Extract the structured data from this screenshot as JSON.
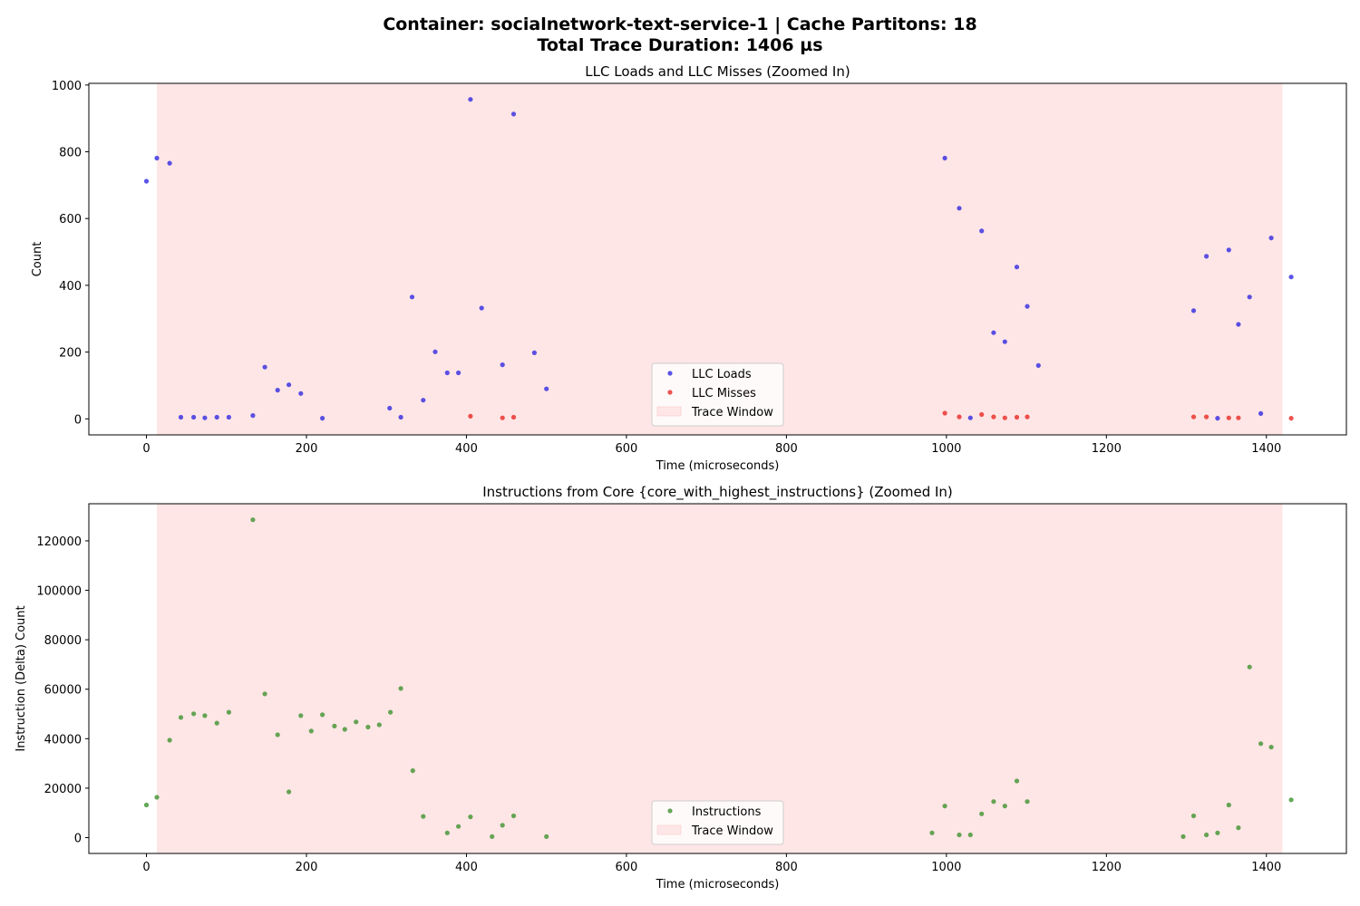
{
  "figure": {
    "title_line1": "Container: socialnetwork-text-service-1 | Cache Partitons: 18",
    "title_line2": "Total Trace Duration: 1406 µs"
  },
  "colors": {
    "loads": "#2b24e0",
    "misses": "#e8221e",
    "instructions": "#3a8f2a",
    "trace_window": "#ffe6e6"
  },
  "chart_data": [
    {
      "type": "scatter",
      "title": "LLC Loads and LLC Misses (Zoomed In)",
      "xlabel": "Time (microseconds)",
      "ylabel": "Count",
      "xlim": [
        -72,
        1500
      ],
      "ylim": [
        -48,
        1005
      ],
      "xticks": [
        0,
        200,
        400,
        600,
        800,
        1000,
        1200,
        1400
      ],
      "yticks": [
        0,
        200,
        400,
        600,
        800,
        1000
      ],
      "trace_window": [
        13,
        1420
      ],
      "legend_position": "lower center",
      "legend": [
        "LLC Loads",
        "LLC Misses",
        "Trace Window"
      ],
      "series": [
        {
          "name": "LLC Loads",
          "color_key": "loads",
          "points": [
            [
              0,
              712
            ],
            [
              13,
              781
            ],
            [
              29,
              766
            ],
            [
              43,
              5
            ],
            [
              59,
              5
            ],
            [
              73,
              3
            ],
            [
              88,
              5
            ],
            [
              103,
              5
            ],
            [
              133,
              10
            ],
            [
              148,
              155
            ],
            [
              164,
              86
            ],
            [
              178,
              102
            ],
            [
              193,
              76
            ],
            [
              220,
              2
            ],
            [
              304,
              32
            ],
            [
              318,
              5
            ],
            [
              332,
              365
            ],
            [
              346,
              56
            ],
            [
              361,
              201
            ],
            [
              376,
              138
            ],
            [
              390,
              138
            ],
            [
              405,
              957
            ],
            [
              419,
              332
            ],
            [
              445,
              162
            ],
            [
              459,
              913
            ],
            [
              485,
              198
            ],
            [
              500,
              90
            ],
            [
              998,
              781
            ],
            [
              1016,
              631
            ],
            [
              1030,
              3
            ],
            [
              1044,
              563
            ],
            [
              1059,
              258
            ],
            [
              1073,
              231
            ],
            [
              1088,
              455
            ],
            [
              1101,
              337
            ],
            [
              1115,
              160
            ],
            [
              1309,
              324
            ],
            [
              1325,
              487
            ],
            [
              1339,
              2
            ],
            [
              1353,
              506
            ],
            [
              1365,
              283
            ],
            [
              1379,
              365
            ],
            [
              1393,
              16
            ],
            [
              1406,
              542
            ],
            [
              1431,
              425
            ]
          ]
        },
        {
          "name": "LLC Misses",
          "color_key": "misses",
          "points": [
            [
              405,
              8
            ],
            [
              445,
              3
            ],
            [
              459,
              5
            ],
            [
              998,
              17
            ],
            [
              1016,
              6
            ],
            [
              1044,
              13
            ],
            [
              1059,
              6
            ],
            [
              1073,
              3
            ],
            [
              1088,
              5
            ],
            [
              1101,
              6
            ],
            [
              1309,
              6
            ],
            [
              1325,
              6
            ],
            [
              1353,
              3
            ],
            [
              1365,
              3
            ],
            [
              1431,
              2
            ]
          ]
        }
      ]
    },
    {
      "type": "scatter",
      "title": "Instructions from Core {core_with_highest_instructions} (Zoomed In)",
      "xlabel": "Time (microseconds)",
      "ylabel": "Instruction (Delta) Count",
      "xlim": [
        -72,
        1500
      ],
      "ylim": [
        -6400,
        135000
      ],
      "xticks": [
        0,
        200,
        400,
        600,
        800,
        1000,
        1200,
        1400
      ],
      "yticks": [
        0,
        20000,
        40000,
        60000,
        80000,
        100000,
        120000
      ],
      "trace_window": [
        13,
        1420
      ],
      "legend_position": "lower center",
      "legend": [
        "Instructions",
        "Trace Window"
      ],
      "series": [
        {
          "name": "Instructions",
          "color_key": "instructions",
          "points": [
            [
              0,
              13200
            ],
            [
              13,
              16300
            ],
            [
              29,
              39400
            ],
            [
              43,
              48600
            ],
            [
              59,
              50100
            ],
            [
              73,
              49300
            ],
            [
              88,
              46300
            ],
            [
              103,
              50700
            ],
            [
              133,
              128500
            ],
            [
              148,
              58100
            ],
            [
              164,
              41600
            ],
            [
              178,
              18500
            ],
            [
              193,
              49300
            ],
            [
              206,
              43100
            ],
            [
              220,
              49700
            ],
            [
              235,
              45100
            ],
            [
              248,
              43800
            ],
            [
              262,
              46800
            ],
            [
              277,
              44700
            ],
            [
              291,
              45600
            ],
            [
              305,
              50700
            ],
            [
              318,
              60300
            ],
            [
              333,
              27100
            ],
            [
              346,
              8600
            ],
            [
              376,
              1900
            ],
            [
              390,
              4500
            ],
            [
              405,
              8400
            ],
            [
              432,
              400
            ],
            [
              445,
              5000
            ],
            [
              459,
              8800
            ],
            [
              500,
              400
            ],
            [
              982,
              1900
            ],
            [
              998,
              12800
            ],
            [
              1016,
              1100
            ],
            [
              1030,
              1100
            ],
            [
              1044,
              9600
            ],
            [
              1059,
              14600
            ],
            [
              1073,
              12800
            ],
            [
              1088,
              22900
            ],
            [
              1101,
              14600
            ],
            [
              1296,
              400
            ],
            [
              1309,
              8800
            ],
            [
              1325,
              1100
            ],
            [
              1339,
              1900
            ],
            [
              1353,
              13200
            ],
            [
              1365,
              4000
            ],
            [
              1379,
              69000
            ],
            [
              1393,
              38000
            ],
            [
              1406,
              36600
            ],
            [
              1431,
              15300
            ]
          ]
        }
      ]
    }
  ]
}
